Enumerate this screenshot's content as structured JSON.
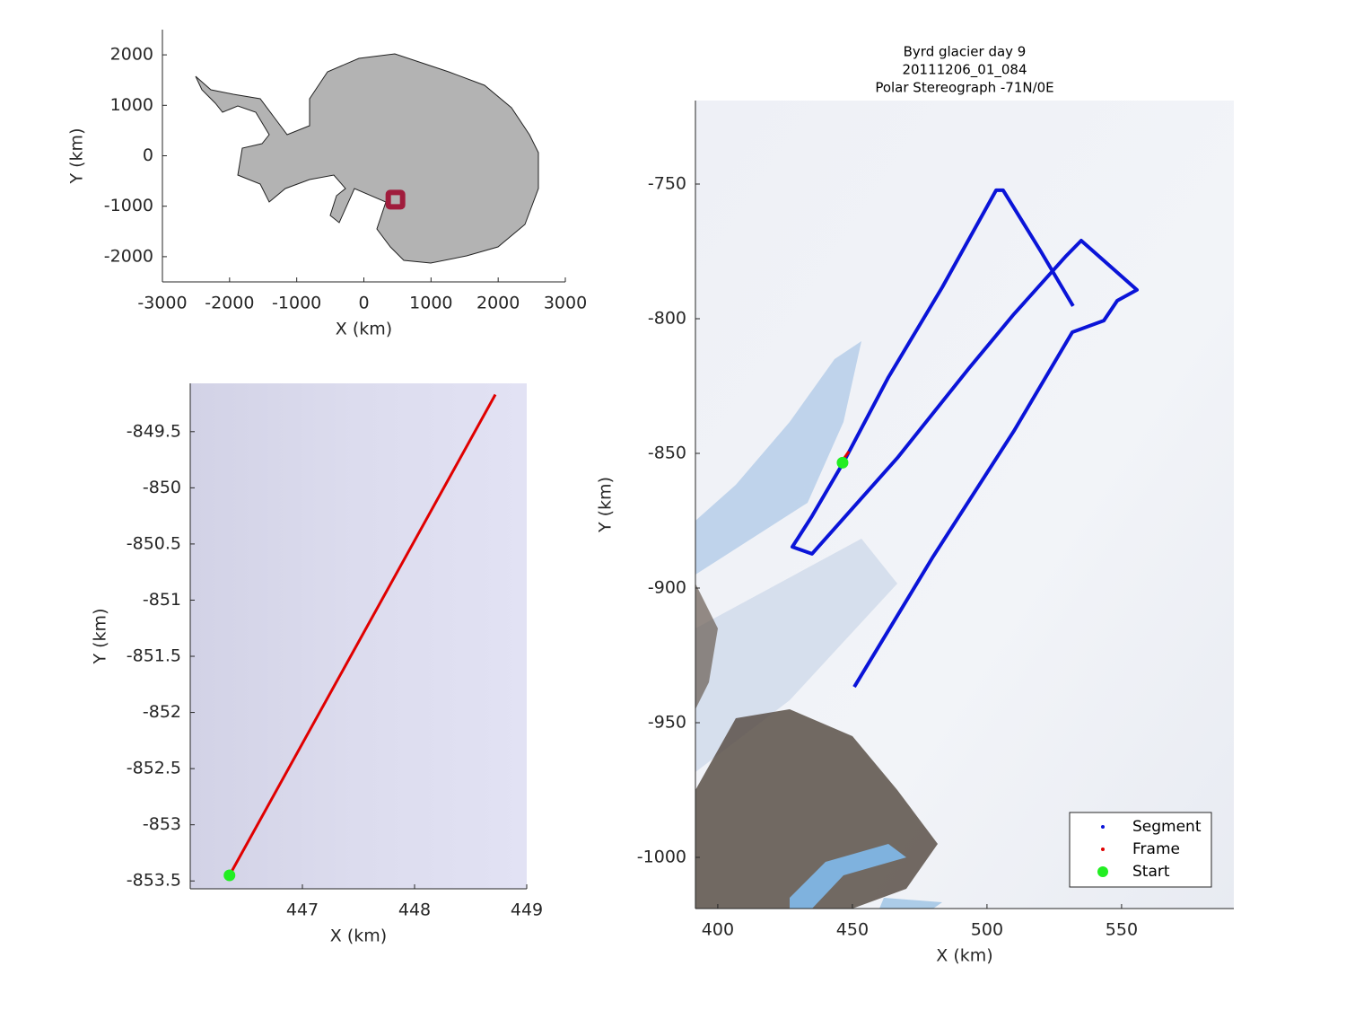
{
  "chart_data": [
    {
      "type": "map",
      "xlabel": "X (km)",
      "ylabel": "Y (km)",
      "xlim": [
        -3000,
        3000
      ],
      "ylim": [
        -2500,
        2500
      ],
      "xticks": [
        -3000,
        -2000,
        -1000,
        0,
        1000,
        2000,
        3000
      ],
      "yticks": [
        -2000,
        -1000,
        0,
        1000,
        2000
      ],
      "marker": {
        "x": 470,
        "y": -870,
        "color": "#a01c3c"
      }
    },
    {
      "type": "line",
      "xlabel": "X (km)",
      "ylabel": "Y (km)",
      "xlim": [
        446.0,
        449.0
      ],
      "ylim": [
        -853.57,
        -849.07
      ],
      "xticks": [
        447,
        448,
        449
      ],
      "yticks": [
        -849.5,
        -850,
        -850.5,
        -851,
        -851.5,
        -852,
        -852.5,
        -853,
        -853.5
      ],
      "series": [
        {
          "color": "#e00000",
          "x": [
            446.35,
            448.72
          ],
          "values": [
            -853.45,
            -849.17
          ]
        },
        {
          "color": "#22ee22",
          "x": [
            446.35
          ],
          "values": [
            -853.45
          ],
          "marker": true
        }
      ]
    },
    {
      "type": "line",
      "title": [
        "Byrd glacier day 9",
        "20111206_01_084",
        "Polar Stereograph -71N/0E"
      ],
      "xlabel": "X (km)",
      "ylabel": "Y (km)",
      "xlim": [
        391.7,
        591.7
      ],
      "ylim": [
        -1019,
        -719
      ],
      "xticks": [
        400,
        450,
        500,
        550
      ],
      "yticks": [
        -750,
        -800,
        -850,
        -900,
        -950,
        -1000
      ],
      "legend": "southeast",
      "series": [
        {
          "name": "Segment",
          "color": "#0a14d8",
          "x": [
            450.7,
            480.0,
            510.0,
            531.7,
            543.4,
            548.4,
            555.7,
            535.0,
            529.4,
            510.0,
            493.4,
            466.7,
            435.0,
            427.7,
            435.0,
            446.7,
            463.4,
            483.4,
            503.4,
            506.0,
            520.0,
            532.0
          ],
          "values": [
            -936.7,
            -888.3,
            -841.7,
            -805.0,
            -800.7,
            -793.3,
            -789.3,
            -771.0,
            -776.7,
            -798.3,
            -818.3,
            -851.7,
            -887.3,
            -884.7,
            -873.3,
            -853.3,
            -821.7,
            -788.3,
            -752.3,
            -752.3,
            -775.0,
            -795.3
          ]
        },
        {
          "name": "Frame",
          "color": "#e00000",
          "x": [
            446.0,
            448.7
          ],
          "values": [
            -853.1,
            -849.3
          ]
        },
        {
          "name": "Start",
          "color": "#22ee22",
          "x": [
            446.35
          ],
          "values": [
            -853.45
          ],
          "marker": true
        }
      ]
    }
  ]
}
